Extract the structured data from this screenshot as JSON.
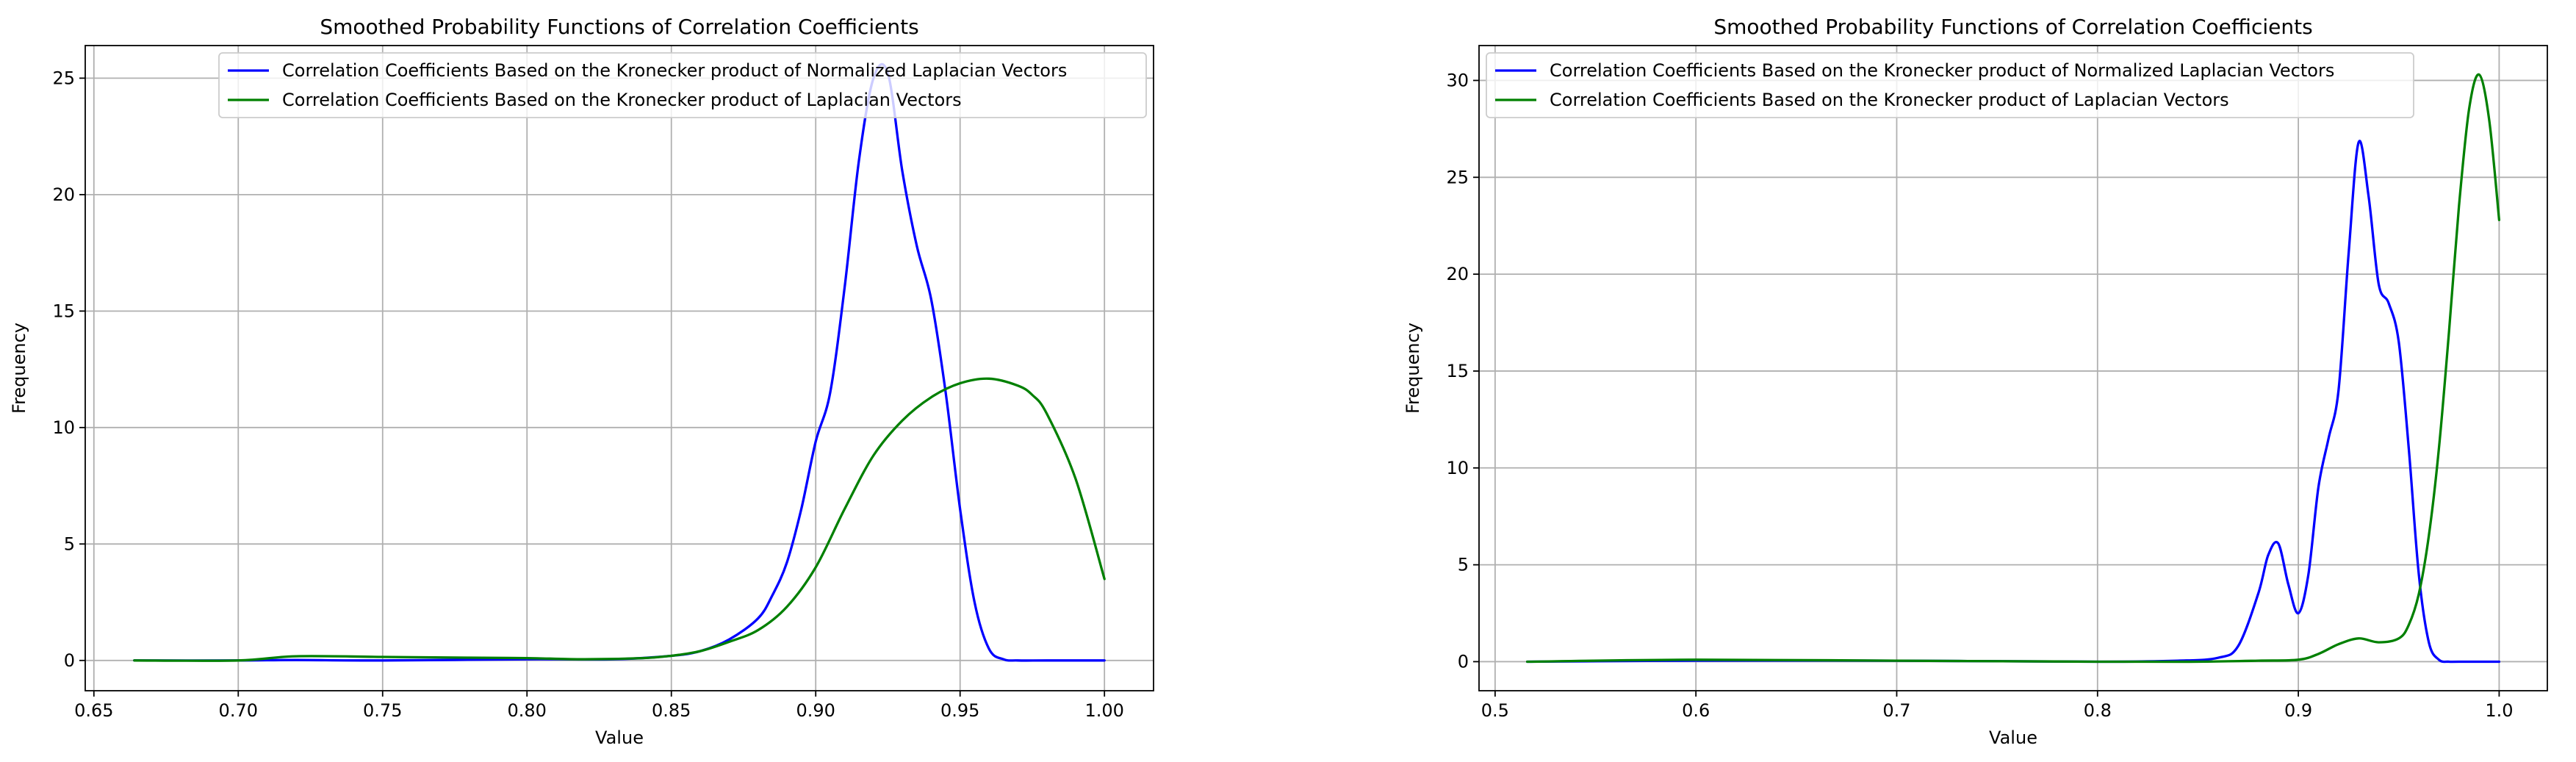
{
  "chart_data": [
    {
      "type": "line",
      "title": "Smoothed Probability Functions of Correlation Coefficients",
      "xlabel": "Value",
      "ylabel": "Frequency",
      "xlim": [
        0.647,
        1.017
      ],
      "ylim": [
        -1.3,
        26.4
      ],
      "xticks": [
        0.65,
        0.7,
        0.75,
        0.8,
        0.85,
        0.9,
        0.95,
        1.0
      ],
      "xtick_labels": [
        "0.65",
        "0.70",
        "0.75",
        "0.80",
        "0.85",
        "0.90",
        "0.95",
        "1.00"
      ],
      "yticks": [
        0,
        5,
        10,
        15,
        20,
        25
      ],
      "ytick_labels": [
        "0",
        "5",
        "10",
        "15",
        "20",
        "25"
      ],
      "grid": true,
      "legend_position": "upper-right",
      "series": [
        {
          "name": "Correlation Coefficients Based on the Kronecker product of Normalized Laplacian Vectors",
          "color": "#0000ff",
          "x": [
            0.664,
            0.7,
            0.72,
            0.75,
            0.8,
            0.83,
            0.85,
            0.86,
            0.87,
            0.88,
            0.885,
            0.89,
            0.895,
            0.9,
            0.905,
            0.91,
            0.915,
            0.92,
            0.925,
            0.93,
            0.935,
            0.94,
            0.945,
            0.95,
            0.955,
            0.96,
            0.965,
            0.97,
            0.98,
            1.0
          ],
          "y": [
            0.0,
            0.0,
            0.02,
            0.0,
            0.05,
            0.05,
            0.2,
            0.4,
            0.9,
            1.8,
            2.8,
            4.2,
            6.5,
            9.4,
            11.5,
            16.0,
            21.5,
            25.0,
            25.2,
            21.0,
            17.8,
            15.5,
            11.5,
            6.5,
            2.5,
            0.5,
            0.05,
            0.0,
            0.0,
            0.0
          ]
        },
        {
          "name": "Correlation Coefficients Based on the Kronecker product of Laplacian Vectors",
          "color": "#008000",
          "x": [
            0.664,
            0.7,
            0.72,
            0.75,
            0.78,
            0.8,
            0.82,
            0.84,
            0.85,
            0.86,
            0.87,
            0.88,
            0.89,
            0.9,
            0.91,
            0.92,
            0.93,
            0.94,
            0.95,
            0.96,
            0.97,
            0.975,
            0.98,
            0.99,
            1.0
          ],
          "y": [
            0.0,
            0.0,
            0.18,
            0.15,
            0.12,
            0.1,
            0.05,
            0.1,
            0.2,
            0.4,
            0.8,
            1.3,
            2.3,
            4.0,
            6.5,
            8.8,
            10.3,
            11.3,
            11.9,
            12.1,
            11.8,
            11.4,
            10.6,
            7.8,
            3.5
          ]
        }
      ]
    },
    {
      "type": "line",
      "title": "Smoothed Probability Functions of Correlation Coefficients",
      "xlabel": "Value",
      "ylabel": "Frequency",
      "xlim": [
        0.492,
        1.024
      ],
      "ylim": [
        -1.5,
        31.8
      ],
      "xticks": [
        0.5,
        0.6,
        0.7,
        0.8,
        0.9,
        1.0
      ],
      "xtick_labels": [
        "0.5",
        "0.6",
        "0.7",
        "0.8",
        "0.9",
        "1.0"
      ],
      "yticks": [
        0,
        5,
        10,
        15,
        20,
        25,
        30
      ],
      "ytick_labels": [
        "0",
        "5",
        "10",
        "15",
        "20",
        "25",
        "30"
      ],
      "grid": true,
      "legend_position": "upper-left",
      "series": [
        {
          "name": "Correlation Coefficients Based on the Kronecker product of Normalized Laplacian Vectors",
          "color": "#0000ff",
          "x": [
            0.516,
            0.6,
            0.7,
            0.8,
            0.84,
            0.86,
            0.87,
            0.88,
            0.885,
            0.89,
            0.895,
            0.9,
            0.905,
            0.91,
            0.915,
            0.92,
            0.925,
            0.93,
            0.935,
            0.94,
            0.945,
            0.95,
            0.955,
            0.96,
            0.965,
            0.97,
            0.975,
            0.98,
            1.0
          ],
          "y": [
            0.0,
            0.05,
            0.05,
            0.0,
            0.05,
            0.2,
            0.8,
            3.5,
            5.5,
            6.1,
            4.0,
            2.5,
            4.5,
            9.0,
            11.5,
            14.0,
            21.0,
            26.8,
            24.0,
            19.5,
            18.5,
            16.5,
            11.0,
            4.5,
            1.0,
            0.1,
            0.0,
            0.0,
            0.0
          ]
        },
        {
          "name": "Correlation Coefficients Based on the Kronecker product of Laplacian Vectors",
          "color": "#008000",
          "x": [
            0.516,
            0.6,
            0.7,
            0.8,
            0.85,
            0.88,
            0.9,
            0.91,
            0.92,
            0.93,
            0.94,
            0.95,
            0.955,
            0.96,
            0.965,
            0.97,
            0.975,
            0.98,
            0.985,
            0.99,
            0.995,
            1.0
          ],
          "y": [
            0.0,
            0.1,
            0.05,
            0.0,
            0.0,
            0.05,
            0.1,
            0.4,
            0.9,
            1.2,
            1.0,
            1.2,
            1.9,
            3.5,
            6.5,
            11.0,
            17.0,
            23.5,
            28.5,
            30.3,
            28.0,
            22.8
          ]
        }
      ]
    }
  ]
}
